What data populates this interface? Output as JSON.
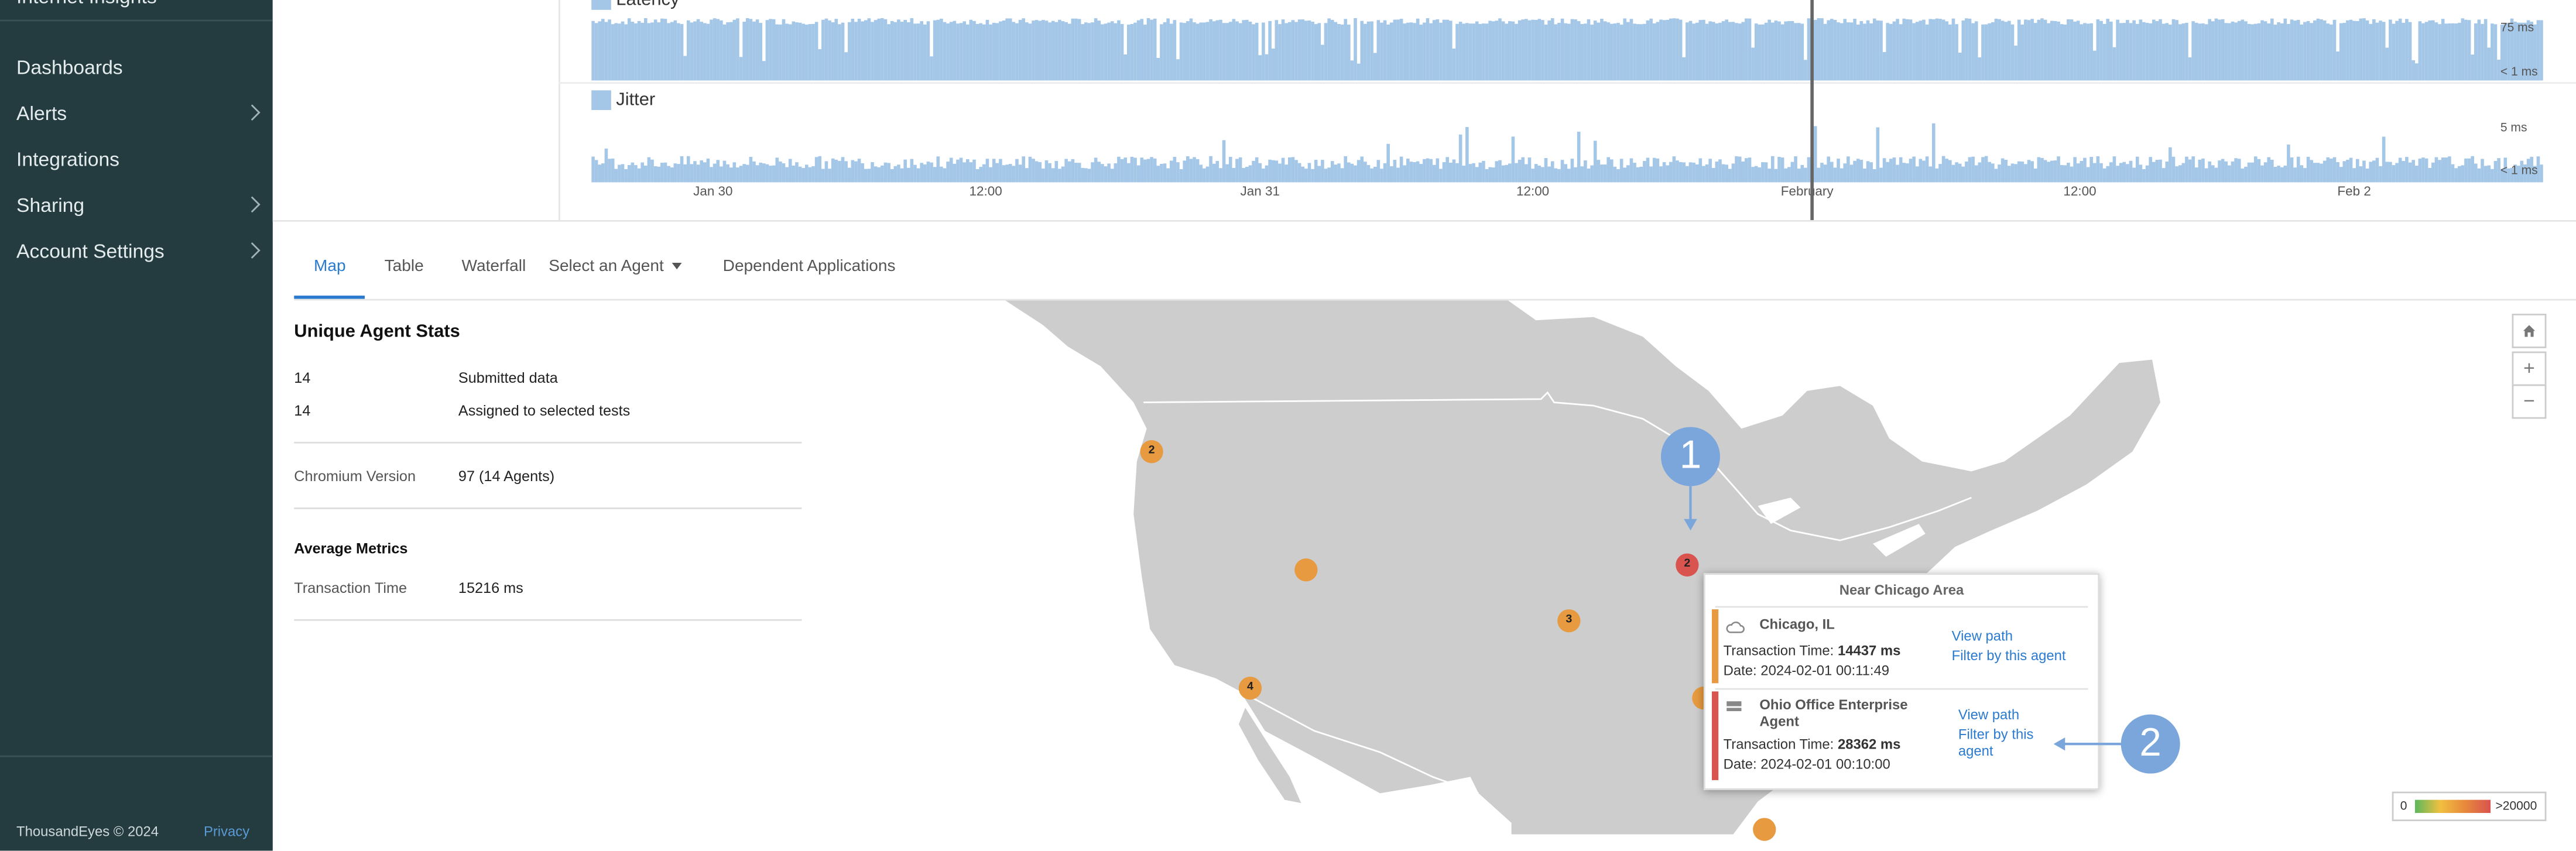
{
  "sidebar": {
    "app_title": "Internet Insights",
    "items": [
      {
        "label": "Dashboards",
        "has_submenu": false
      },
      {
        "label": "Alerts",
        "has_submenu": true
      },
      {
        "label": "Integrations",
        "has_submenu": false
      },
      {
        "label": "Sharing",
        "has_submenu": true
      },
      {
        "label": "Account Settings",
        "has_submenu": true
      }
    ],
    "copyright": "ThousandEyes © 2024",
    "privacy_link": "Privacy"
  },
  "charts": {
    "latency": {
      "legend": "Latency",
      "y_max": "75 ms",
      "y_min": "< 1 ms"
    },
    "jitter": {
      "legend": "Jitter",
      "y_max": "5 ms",
      "y_min": "< 1 ms"
    },
    "x_ticks": [
      "Jan 30",
      "12:00",
      "Jan 31",
      "12:00",
      "February",
      "12:00",
      "Feb 2"
    ],
    "series_color": "#a4c7e8"
  },
  "tabs": {
    "items": [
      "Map",
      "Table",
      "Waterfall"
    ],
    "active": "Map",
    "agent_select": "Select an Agent",
    "dependent": "Dependent Applications"
  },
  "stats": {
    "title": "Unique Agent Stats",
    "rows": [
      {
        "value": "14",
        "label": "Submitted data"
      },
      {
        "value": "14",
        "label": "Assigned to selected tests"
      }
    ],
    "chromium": {
      "label": "Chromium Version",
      "value": "97 (14 Agents)"
    },
    "avg_title": "Average Metrics",
    "transaction": {
      "label": "Transaction Time",
      "value": "15216 ms"
    }
  },
  "map": {
    "clusters": [
      "2",
      "",
      "3",
      "4",
      "2"
    ],
    "controls": {
      "home": "home-icon",
      "zoom_in": "+",
      "zoom_out": "−"
    },
    "popup": {
      "title": "Near Chicago Area",
      "agents": [
        {
          "name": "Chicago, IL",
          "icon": "cloud-icon",
          "tt_label": "Transaction Time:",
          "tt_value": "14437 ms",
          "date_label": "Date:",
          "date_value": "2024-02-01 00:11:49",
          "view_path": "View path",
          "filter": "Filter by this agent",
          "color": "#e79a3f"
        },
        {
          "name_line1": "Ohio Office Enterprise",
          "name_line2": "Agent",
          "icon": "server-icon",
          "tt_label": "Transaction Time:",
          "tt_value": "28362 ms",
          "date_label": "Date:",
          "date_value": "2024-02-01 00:10:00",
          "view_path": "View path",
          "filter_line1": "Filter by this",
          "filter_line2": "agent",
          "color": "#d9534f"
        }
      ]
    },
    "callouts": [
      "1",
      "2"
    ],
    "scale": {
      "min": "0",
      "max": ">20000"
    }
  }
}
